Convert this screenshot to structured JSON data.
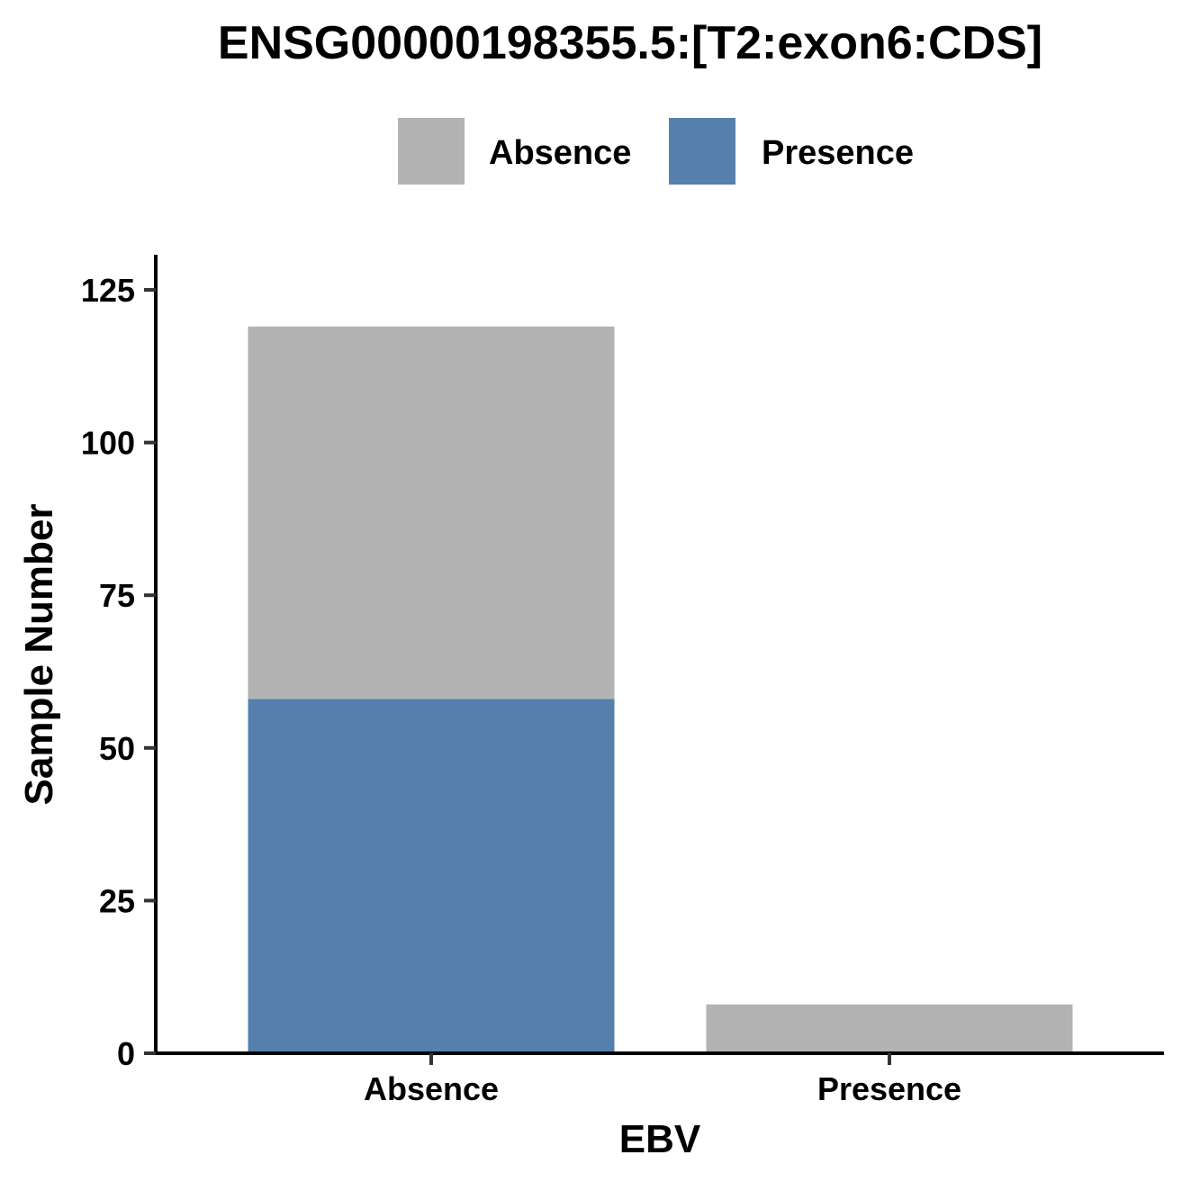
{
  "chart_data": {
    "type": "bar",
    "stacked": true,
    "title": "ENSG00000198355.5:[T2:exon6:CDS]",
    "xlabel": "EBV",
    "ylabel": "Sample Number",
    "categories": [
      "Absence",
      "Presence"
    ],
    "series": [
      {
        "name": "Presence",
        "color": "#5580ad",
        "values": [
          58,
          0
        ]
      },
      {
        "name": "Absence",
        "color": "#b3b3b3",
        "values": [
          61,
          8
        ]
      }
    ],
    "legend": {
      "placement": "top",
      "entries": [
        {
          "label": "Absence",
          "color": "#b3b3b3"
        },
        {
          "label": "Presence",
          "color": "#5580ad"
        }
      ]
    },
    "ylim": [
      0,
      130
    ],
    "yticks": [
      0,
      25,
      50,
      75,
      100,
      125
    ],
    "grid": false
  }
}
